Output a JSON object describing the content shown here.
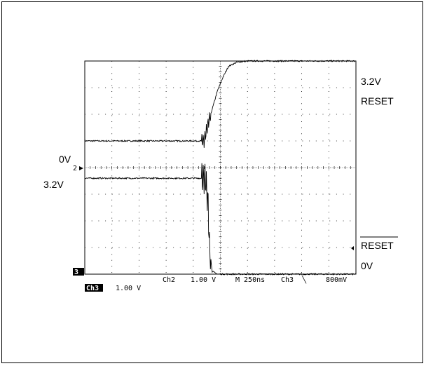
{
  "chart_data": {
    "type": "line",
    "title": "",
    "xlabel": "",
    "ylabel": "",
    "grid": true,
    "x_divisions": 10,
    "y_divisions": 8,
    "series": [
      {
        "label_top": "3.2V",
        "label_bottom": "RESET",
        "x": [
          0,
          4.4,
          4.5,
          4.7,
          4.9,
          5.1,
          5.3,
          5.6,
          6.0,
          6.5,
          10
        ],
        "y_div": [
          5.0,
          5.0,
          5.45,
          6.2,
          6.9,
          7.4,
          7.8,
          7.95,
          8.0,
          8.0,
          8.0
        ]
      },
      {
        "label_top": "RESET",
        "label_bottom": "0V",
        "x": [
          0,
          4.45,
          4.55,
          4.6,
          4.7,
          4.9,
          5.2,
          10
        ],
        "y_div": [
          3.6,
          3.6,
          2.6,
          1.0,
          0.1,
          0.0,
          0.0,
          0.0
        ]
      }
    ],
    "left_labels": [
      "0V",
      "3.2V"
    ],
    "channel_markers": [
      "2",
      "3"
    ],
    "readout": {
      "ch3": "Ch3",
      "ch3_scale": "1.00 V",
      "ch2": "Ch2",
      "ch2_scale": "1.00 V",
      "timebase": "M 250ns",
      "trigger_src": "Ch3",
      "trigger_edge": "╲",
      "trigger_level": "800mV"
    }
  }
}
